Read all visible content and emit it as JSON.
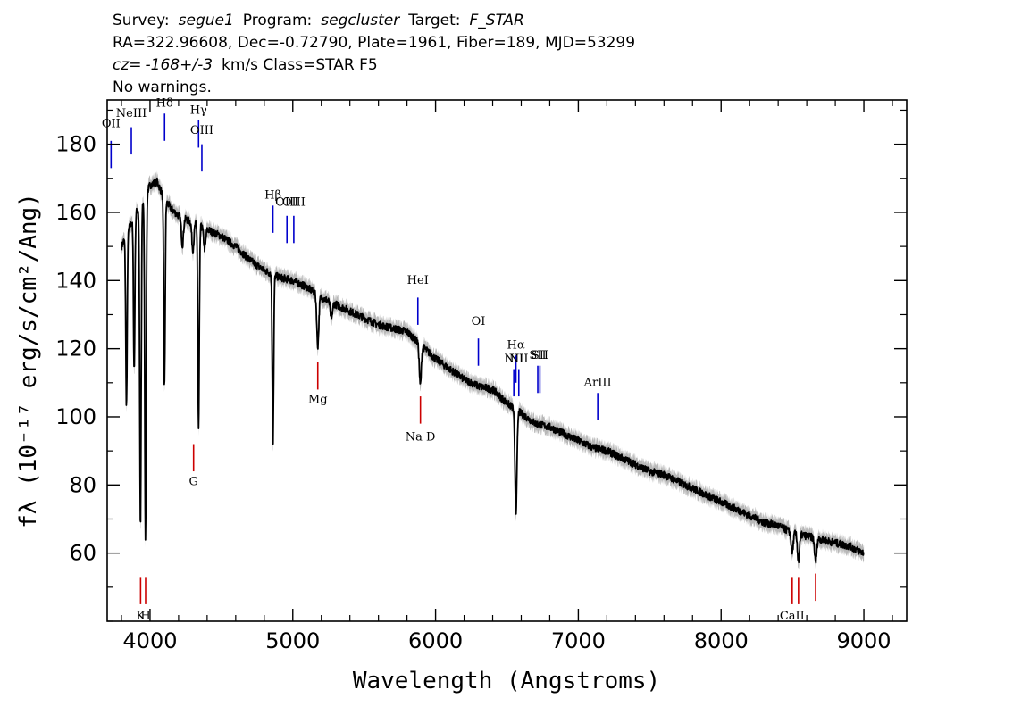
{
  "header": {
    "line1": {
      "survey_label": "Survey:",
      "survey": "segue1",
      "program_label": "Program:",
      "program": "segcluster",
      "target_label": "Target:",
      "target": "F_STAR"
    },
    "line2": "RA=322.96608, Dec=-0.72790, Plate=1961, Fiber=189, MJD=53299",
    "line3": {
      "cz_label": "cz=",
      "cz": "-168+/-3",
      "rest": "km/s Class=STAR F5"
    },
    "line4": "No warnings."
  },
  "colors": {
    "spectrum": "#000000",
    "error_band": "#b8b8b8",
    "emission_line": "#0000cc",
    "absorption_line": "#cc0000"
  },
  "chart_data": {
    "type": "line",
    "xlabel": "Wavelength (Angstroms)",
    "ylabel": "fλ (10⁻¹⁷ erg/s/cm²/Ang)",
    "xlim": [
      3700,
      9300
    ],
    "ylim": [
      40,
      193
    ],
    "xticks": [
      4000,
      5000,
      6000,
      7000,
      8000,
      9000
    ],
    "yticks": [
      60,
      80,
      100,
      120,
      140,
      160,
      180
    ],
    "grid": false,
    "continuum": {
      "x": [
        3800,
        3850,
        3900,
        3950,
        4000,
        4050,
        4100,
        4150,
        4200,
        4300,
        4400,
        4500,
        4600,
        4700,
        4800,
        4900,
        5000,
        5100,
        5200,
        5300,
        5400,
        5500,
        5600,
        5700,
        5800,
        5900,
        6000,
        6100,
        6200,
        6300,
        6400,
        6500,
        6600,
        6700,
        6800,
        6900,
        7000,
        7100,
        7200,
        7300,
        7400,
        7500,
        7600,
        7700,
        7800,
        7900,
        8000,
        8100,
        8200,
        8300,
        8400,
        8500,
        8600,
        8700,
        8800,
        8900,
        9000
      ],
      "y": [
        150,
        155,
        160,
        163,
        168,
        169,
        164,
        161,
        159,
        157,
        155,
        153,
        150,
        146,
        143,
        141,
        140,
        138,
        135,
        133,
        131,
        129,
        127,
        126,
        125,
        121,
        117,
        114,
        111,
        109,
        108,
        104,
        101,
        98,
        97,
        95,
        93,
        91,
        90,
        88,
        86,
        84,
        83,
        81,
        79,
        77,
        75,
        73,
        71,
        69,
        68,
        66,
        65,
        64,
        63,
        62,
        60
      ]
    },
    "absorption_features": [
      {
        "x": 3835,
        "depth": 50
      },
      {
        "x": 3889,
        "depth": 45
      },
      {
        "x": 3933,
        "depth": 95
      },
      {
        "x": 3968,
        "depth": 100
      },
      {
        "x": 4101,
        "depth": 55
      },
      {
        "x": 4227,
        "depth": 8
      },
      {
        "x": 4300,
        "depth": 8
      },
      {
        "x": 4340,
        "depth": 60
      },
      {
        "x": 4383,
        "depth": 6
      },
      {
        "x": 4861,
        "depth": 50
      },
      {
        "x": 5175,
        "depth": 15
      },
      {
        "x": 5270,
        "depth": 5
      },
      {
        "x": 5893,
        "depth": 12
      },
      {
        "x": 6563,
        "depth": 30
      },
      {
        "x": 8498,
        "depth": 6
      },
      {
        "x": 8542,
        "depth": 8
      },
      {
        "x": 8662,
        "depth": 7
      }
    ],
    "spectral_lines": [
      {
        "label": "OII",
        "x": 3727,
        "type": "emission",
        "y0": 173,
        "y1": 181,
        "label_y": 185
      },
      {
        "label": "NeIII",
        "x": 3869,
        "type": "emission",
        "y0": 177,
        "y1": 185,
        "label_y": 188
      },
      {
        "label": "Hδ",
        "x": 4102,
        "type": "emission",
        "y0": 181,
        "y1": 189,
        "label_y": 191
      },
      {
        "label": "Hγ",
        "x": 4340,
        "type": "emission",
        "y0": 179,
        "y1": 187,
        "label_y": 189
      },
      {
        "label": "OIII",
        "x": 4363,
        "type": "emission",
        "y0": 172,
        "y1": 180,
        "label_y": 183
      },
      {
        "label": "Hβ",
        "x": 4861,
        "type": "emission",
        "y0": 154,
        "y1": 162,
        "label_y": 164
      },
      {
        "label": "OIII",
        "x": 4959,
        "type": "emission",
        "y0": 151,
        "y1": 159,
        "label_y": 162
      },
      {
        "label": "OIII",
        "x": 5007,
        "type": "emission",
        "y0": 151,
        "y1": 159,
        "label_y": 162
      },
      {
        "label": "HeI",
        "x": 5876,
        "type": "emission",
        "y0": 127,
        "y1": 135,
        "label_y": 139
      },
      {
        "label": "OI",
        "x": 6300,
        "type": "emission",
        "y0": 115,
        "y1": 123,
        "label_y": 127
      },
      {
        "label": "NII",
        "x": 6548,
        "type": "emission",
        "y0": 106,
        "y1": 114,
        "label_y": 116
      },
      {
        "label": "Hα",
        "x": 6563,
        "type": "emission",
        "y0": 110,
        "y1": 118,
        "label_y": 120
      },
      {
        "label": "NII",
        "x": 6583,
        "type": "emission",
        "y0": 106,
        "y1": 114,
        "label_y": 116
      },
      {
        "label": "SII",
        "x": 6716,
        "type": "emission",
        "y0": 107,
        "y1": 115,
        "label_y": 117
      },
      {
        "label": "SII",
        "x": 6731,
        "type": "emission",
        "y0": 107,
        "y1": 115,
        "label_y": 117
      },
      {
        "label": "ArIII",
        "x": 7136,
        "type": "emission",
        "y0": 99,
        "y1": 107,
        "label_y": 109
      },
      {
        "label": "K",
        "x": 3934,
        "type": "absorption",
        "y0": 45,
        "y1": 53,
        "label_y": 40.5
      },
      {
        "label": "H",
        "x": 3969,
        "type": "absorption",
        "y0": 45,
        "y1": 53,
        "label_y": 40.5
      },
      {
        "label": "G",
        "x": 4305,
        "type": "absorption",
        "y0": 84,
        "y1": 92,
        "label_y": 80
      },
      {
        "label": "Mg",
        "x": 5175,
        "type": "absorption",
        "y0": 108,
        "y1": 116,
        "label_y": 104
      },
      {
        "label": "Na D",
        "x": 5894,
        "type": "absorption",
        "y0": 98,
        "y1": 106,
        "label_y": 93
      },
      {
        "label": "CaII",
        "x": 8498,
        "type": "absorption",
        "y0": 45,
        "y1": 53,
        "label_y": 40.5
      },
      {
        "label": "",
        "x": 8542,
        "type": "absorption",
        "y0": 45,
        "y1": 53
      },
      {
        "label": "",
        "x": 8662,
        "type": "absorption",
        "y0": 46,
        "y1": 54
      }
    ]
  }
}
